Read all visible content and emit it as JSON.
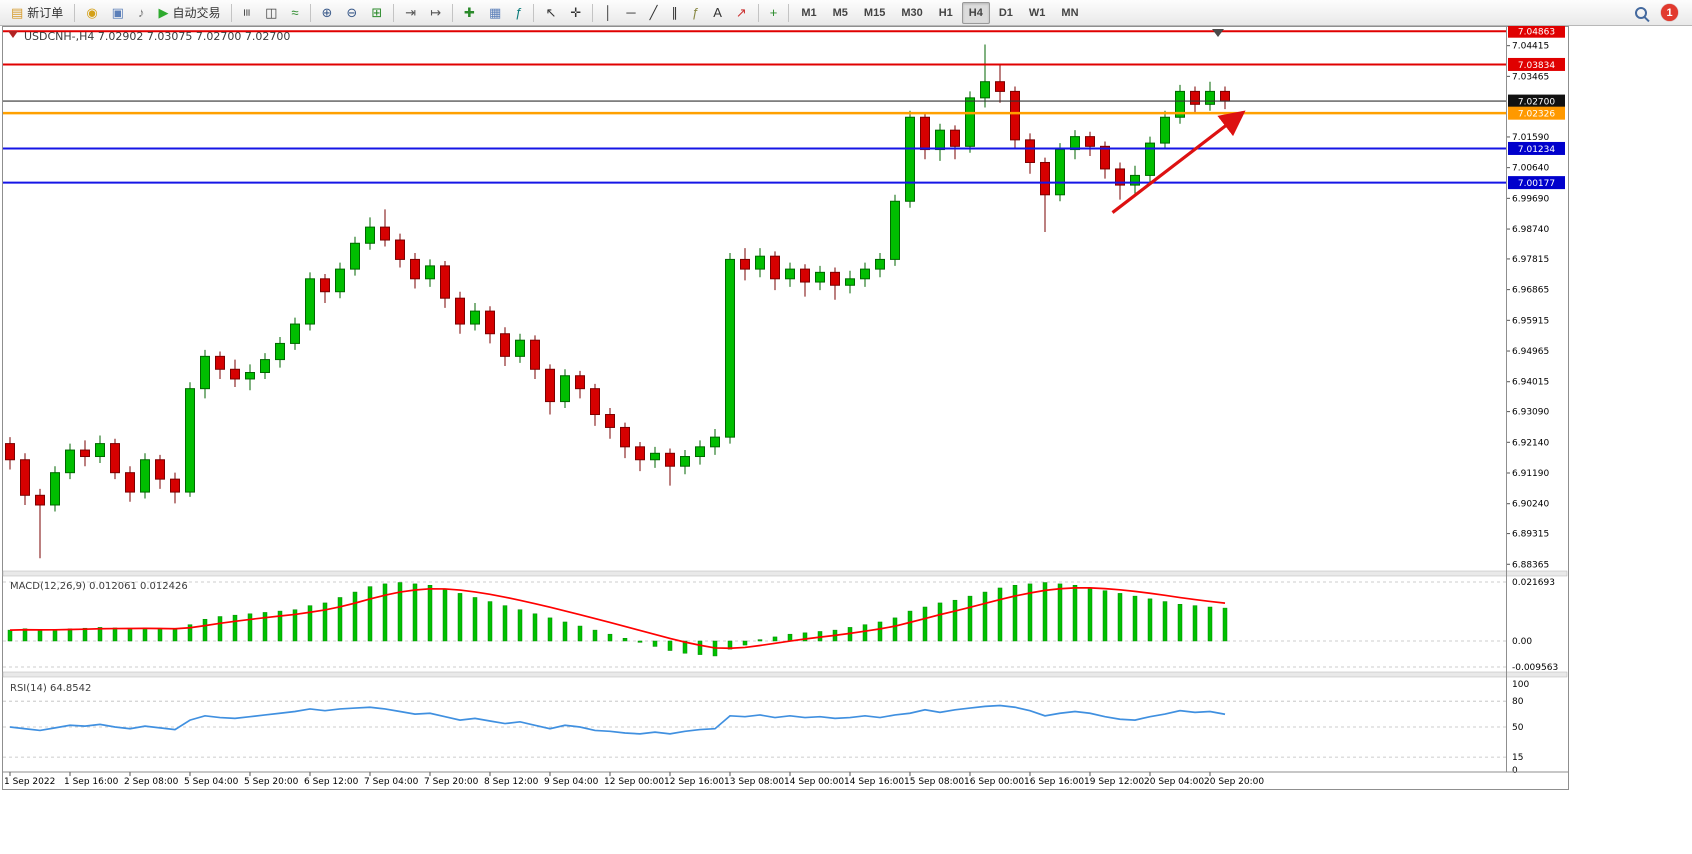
{
  "toolbar": {
    "notification_count": "1",
    "active_timeframe": "H4",
    "items": [
      {
        "name": "new-order-button",
        "glyph": "▤",
        "color": "#d59a2b",
        "label": "新订单"
      },
      {
        "sep": true
      },
      {
        "name": "market-watch-button",
        "glyph": "◉",
        "color": "#d4a017"
      },
      {
        "name": "data-window-button",
        "glyph": "▣",
        "color": "#5b7fb9"
      },
      {
        "name": "sounds-button",
        "glyph": "♪",
        "color": "#777777"
      },
      {
        "name": "autotrade-button",
        "glyph": "▶",
        "color": "#2eaa2e",
        "label": "自动交易"
      },
      {
        "sep": true
      },
      {
        "name": "bar-chart-button",
        "glyph": "≡",
        "color": "#444444",
        "rot": true
      },
      {
        "name": "candlestick-chart-button",
        "glyph": "◫",
        "color": "#444444"
      },
      {
        "name": "line-chart-button",
        "glyph": "≈",
        "color": "#2a8a2a"
      },
      {
        "sep": true
      },
      {
        "name": "zoom-in-button",
        "glyph": "⊕",
        "color": "#3a5a8a"
      },
      {
        "name": "zoom-out-button",
        "glyph": "⊖",
        "color": "#3a5a8a"
      },
      {
        "name": "tile-windows-button",
        "glyph": "⊞",
        "color": "#2a8a2a"
      },
      {
        "sep": true
      },
      {
        "name": "auto-scroll-button",
        "glyph": "⇥",
        "color": "#555555"
      },
      {
        "name": "chart-shift-button",
        "glyph": "↦",
        "color": "#555555"
      },
      {
        "sep": true
      },
      {
        "name": "new-chart-button",
        "glyph": "✚",
        "color": "#2a8a2a"
      },
      {
        "name": "profiles-button",
        "glyph": "▦",
        "color": "#5b7fb9"
      },
      {
        "name": "indicators-button",
        "glyph": "ƒ",
        "color": "#0a7a7a"
      },
      {
        "sep": true
      },
      {
        "name": "cursor-button",
        "glyph": "↖",
        "color": "#333333"
      },
      {
        "name": "crosshair-button",
        "glyph": "✛",
        "color": "#333333"
      },
      {
        "sep": true
      },
      {
        "name": "vertical-line-button",
        "glyph": "│",
        "color": "#333333"
      },
      {
        "name": "horizontal-line-button",
        "glyph": "─",
        "color": "#333333"
      },
      {
        "name": "trendline-button",
        "glyph": "╱",
        "color": "#333333"
      },
      {
        "name": "equidistant-channel-button",
        "glyph": "∥",
        "color": "#333333"
      },
      {
        "name": "fibonacci-button",
        "glyph": "ƒ",
        "color": "#888844"
      },
      {
        "name": "text-label-button",
        "glyph": "A",
        "color": "#333333"
      },
      {
        "name": "arrow-object-button",
        "glyph": "↗",
        "color": "#cc3333"
      },
      {
        "sep": true
      },
      {
        "name": "add-indicator-button",
        "glyph": "+",
        "color": "#2a8a2a"
      },
      {
        "sep": true
      },
      {
        "name": "timeframe-m1-button",
        "tf": "M1"
      },
      {
        "name": "timeframe-m5-button",
        "tf": "M5"
      },
      {
        "name": "timeframe-m15-button",
        "tf": "M15"
      },
      {
        "name": "timeframe-m30-button",
        "tf": "M30"
      },
      {
        "name": "timeframe-h1-button",
        "tf": "H1"
      },
      {
        "name": "timeframe-h4-button",
        "tf": "H4"
      },
      {
        "name": "timeframe-d1-button",
        "tf": "D1"
      },
      {
        "name": "timeframe-w1-button",
        "tf": "W1"
      },
      {
        "name": "timeframe-mn-button",
        "tf": "MN"
      }
    ]
  },
  "colors": {
    "bull": "#00BE00",
    "bull_border": "#006600",
    "bear": "#D60000",
    "bear_border": "#7A0000",
    "macd_bar": "#00C000",
    "macd_bar_border": "#008A00",
    "macd_signal": "#FF0000",
    "rsi_line": "#4090E0",
    "arrow": "#DD1111"
  },
  "chart_data": [
    {
      "type": "candlestick",
      "symbol": "USDCNH-",
      "timeframe": "H4",
      "title": "USDCNH-,H4 7.02902 7.03075 7.02700 7.02700",
      "ohlc_header": {
        "open": "7.02902",
        "high": "7.03075",
        "low": "7.02700",
        "close": "7.02700"
      },
      "ylim": [
        6.8825,
        7.049
      ],
      "y_ticks": [
        "7.04415",
        "7.03465",
        "7.01590",
        "7.00640",
        "6.99690",
        "6.98740",
        "6.97815",
        "6.96865",
        "6.95915",
        "6.94965",
        "6.94015",
        "6.93090",
        "6.92140",
        "6.91190",
        "6.90240",
        "6.89315",
        "6.88365"
      ],
      "price_lines": [
        {
          "label": "7.04863",
          "color": "#E00000",
          "badge": "#E00000",
          "width": 2
        },
        {
          "label": "7.03834",
          "color": "#E00000",
          "badge": "#E00000",
          "width": 2
        },
        {
          "label": "7.02700",
          "color": "#333333",
          "badge": "#111111",
          "width": 1.2,
          "current": true
        },
        {
          "label": "7.02326",
          "color": "#FFA000",
          "badge": "#FF9900",
          "width": 2.5
        },
        {
          "label": "7.01234",
          "color": "#1515E6",
          "badge": "#0000CC",
          "width": 2
        },
        {
          "label": "7.00177",
          "color": "#1515E6",
          "badge": "#0000CC",
          "width": 2
        }
      ],
      "x_label_step": 4,
      "x_labels": [
        "1 Sep 2022",
        "1 Sep 16:00",
        "2 Sep 08:00",
        "5 Sep 04:00",
        "5 Sep 20:00",
        "6 Sep 12:00",
        "7 Sep 04:00",
        "7 Sep 20:00",
        "8 Sep 12:00",
        "9 Sep 04:00",
        "12 Sep 00:00",
        "12 Sep 16:00",
        "13 Sep 08:00",
        "14 Sep 00:00",
        "14 Sep 16:00",
        "15 Sep 08:00",
        "16 Sep 00:00",
        "16 Sep 16:00",
        "19 Sep 12:00",
        "20 Sep 04:00",
        "20 Sep 20:00"
      ],
      "annotations": {
        "arrow": {
          "from_index": 73.5,
          "from_price": 6.9925,
          "to_index": 82.2,
          "to_price": 7.0235,
          "direction": "up-right"
        }
      },
      "ohlc": [
        [
          6.921,
          6.923,
          6.913,
          6.916
        ],
        [
          6.916,
          6.918,
          6.902,
          6.905
        ],
        [
          6.905,
          6.907,
          6.8855,
          6.902
        ],
        [
          6.902,
          6.914,
          6.9,
          6.912
        ],
        [
          6.912,
          6.921,
          6.91,
          6.919
        ],
        [
          6.919,
          6.922,
          6.914,
          6.917
        ],
        [
          6.917,
          6.9235,
          6.915,
          6.921
        ],
        [
          6.921,
          6.9225,
          6.91,
          6.912
        ],
        [
          6.912,
          6.914,
          6.903,
          6.906
        ],
        [
          6.906,
          6.918,
          6.904,
          6.916
        ],
        [
          6.916,
          6.9175,
          6.907,
          6.91
        ],
        [
          6.91,
          6.912,
          6.9025,
          6.906
        ],
        [
          6.906,
          6.94,
          6.9045,
          6.938
        ],
        [
          6.938,
          6.95,
          6.935,
          6.948
        ],
        [
          6.948,
          6.9495,
          6.941,
          6.944
        ],
        [
          6.944,
          6.947,
          6.9385,
          6.941
        ],
        [
          6.941,
          6.9455,
          6.9375,
          6.943
        ],
        [
          6.943,
          6.949,
          6.941,
          6.947
        ],
        [
          6.947,
          6.954,
          6.9445,
          6.952
        ],
        [
          6.952,
          6.96,
          6.95,
          6.958
        ],
        [
          6.958,
          6.974,
          6.956,
          6.972
        ],
        [
          6.972,
          6.9735,
          6.9645,
          6.968
        ],
        [
          6.968,
          6.977,
          6.966,
          6.975
        ],
        [
          6.975,
          6.985,
          6.973,
          6.983
        ],
        [
          6.983,
          6.991,
          6.981,
          6.988
        ],
        [
          6.988,
          6.9935,
          6.982,
          6.984
        ],
        [
          6.984,
          6.986,
          6.9755,
          6.978
        ],
        [
          6.978,
          6.98,
          6.969,
          6.972
        ],
        [
          6.972,
          6.978,
          6.9695,
          6.976
        ],
        [
          6.976,
          6.9775,
          6.963,
          6.966
        ],
        [
          6.966,
          6.968,
          6.955,
          6.958
        ],
        [
          6.958,
          6.9645,
          6.956,
          6.962
        ],
        [
          6.962,
          6.9635,
          6.952,
          6.955
        ],
        [
          6.955,
          6.957,
          6.945,
          6.948
        ],
        [
          6.948,
          6.955,
          6.946,
          6.953
        ],
        [
          6.953,
          6.9545,
          6.941,
          6.944
        ],
        [
          6.944,
          6.9455,
          6.93,
          6.934
        ],
        [
          6.934,
          6.944,
          6.932,
          6.942
        ],
        [
          6.942,
          6.9435,
          6.935,
          6.938
        ],
        [
          6.938,
          6.9395,
          6.9265,
          6.93
        ],
        [
          6.93,
          6.932,
          6.9225,
          6.926
        ],
        [
          6.926,
          6.9275,
          6.9165,
          6.92
        ],
        [
          6.92,
          6.9215,
          6.9125,
          6.916
        ],
        [
          6.916,
          6.92,
          6.9135,
          6.918
        ],
        [
          6.918,
          6.9195,
          6.908,
          6.914
        ],
        [
          6.914,
          6.919,
          6.9115,
          6.917
        ],
        [
          6.917,
          6.922,
          6.9145,
          6.92
        ],
        [
          6.92,
          6.9255,
          6.9175,
          6.923
        ],
        [
          6.923,
          6.98,
          6.921,
          6.978
        ],
        [
          6.978,
          6.9815,
          6.9715,
          6.975
        ],
        [
          6.975,
          6.9815,
          6.9725,
          6.979
        ],
        [
          6.979,
          6.9805,
          6.9685,
          6.972
        ],
        [
          6.972,
          6.977,
          6.9695,
          6.975
        ],
        [
          6.975,
          6.9765,
          6.9665,
          6.971
        ],
        [
          6.971,
          6.976,
          6.9685,
          6.974
        ],
        [
          6.974,
          6.9755,
          6.9655,
          6.97
        ],
        [
          6.97,
          6.9745,
          6.9675,
          6.972
        ],
        [
          6.972,
          6.977,
          6.9695,
          6.975
        ],
        [
          6.975,
          6.98,
          6.9725,
          6.978
        ],
        [
          6.978,
          6.998,
          6.976,
          6.996
        ],
        [
          6.996,
          7.024,
          6.994,
          7.022
        ],
        [
          7.022,
          7.0235,
          7.009,
          7.012
        ],
        [
          7.012,
          7.02,
          7.0085,
          7.018
        ],
        [
          7.018,
          7.0195,
          7.009,
          7.013
        ],
        [
          7.013,
          7.03,
          7.011,
          7.028
        ],
        [
          7.028,
          7.0445,
          7.025,
          7.033
        ],
        [
          7.033,
          7.038,
          7.0265,
          7.03
        ],
        [
          7.03,
          7.0315,
          7.012,
          7.015
        ],
        [
          7.015,
          7.017,
          7.0045,
          7.008
        ],
        [
          7.008,
          7.0095,
          6.9865,
          6.998
        ],
        [
          6.998,
          7.014,
          6.996,
          7.012
        ],
        [
          7.012,
          7.018,
          7.009,
          7.016
        ],
        [
          7.016,
          7.0175,
          7.01,
          7.013
        ],
        [
          7.013,
          7.0145,
          7.003,
          7.006
        ],
        [
          7.006,
          7.008,
          6.9965,
          7.001
        ],
        [
          7.001,
          7.007,
          6.998,
          7.004
        ],
        [
          7.004,
          7.016,
          7.002,
          7.014
        ],
        [
          7.014,
          7.024,
          7.012,
          7.022
        ],
        [
          7.022,
          7.032,
          7.02,
          7.03
        ],
        [
          7.03,
          7.0315,
          7.023,
          7.026
        ],
        [
          7.026,
          7.033,
          7.024,
          7.03
        ],
        [
          7.03,
          7.0315,
          7.0245,
          7.027
        ]
      ]
    },
    {
      "type": "bar",
      "name": "MACD",
      "label": "MACD(12,26,9) 0.012061 0.012426",
      "readout": [
        0.012061,
        0.012426
      ],
      "axis_labels": [
        "0.021693",
        "0.00",
        "-0.009563"
      ],
      "values": [
        0.004,
        0.0045,
        0.004,
        0.0042,
        0.0045,
        0.0047,
        0.005,
        0.0048,
        0.0046,
        0.0048,
        0.0045,
        0.0042,
        0.006,
        0.008,
        0.009,
        0.0095,
        0.01,
        0.0105,
        0.011,
        0.0115,
        0.013,
        0.014,
        0.016,
        0.018,
        0.02,
        0.021,
        0.0215,
        0.021,
        0.0205,
        0.019,
        0.0175,
        0.016,
        0.0145,
        0.013,
        0.0115,
        0.01,
        0.0085,
        0.007,
        0.0055,
        0.004,
        0.0025,
        0.001,
        -0.0005,
        -0.002,
        -0.0035,
        -0.0045,
        -0.005,
        -0.0055,
        -0.003,
        -0.0015,
        0.0005,
        0.0015,
        0.0025,
        0.003,
        0.0035,
        0.004,
        0.005,
        0.006,
        0.007,
        0.0085,
        0.011,
        0.0125,
        0.014,
        0.015,
        0.0165,
        0.018,
        0.0195,
        0.0205,
        0.021,
        0.0215,
        0.021,
        0.0205,
        0.0195,
        0.0185,
        0.0175,
        0.0165,
        0.0155,
        0.0145,
        0.0135,
        0.013,
        0.0125,
        0.0121
      ]
    },
    {
      "type": "line",
      "name": "RSI",
      "label": "RSI(14) 64.8542",
      "readout": 64.8542,
      "axis_labels": [
        "100",
        "80",
        "50",
        "15",
        "0"
      ],
      "level_lines": [
        80,
        50,
        15
      ],
      "ylim": [
        0,
        100
      ],
      "values": [
        50,
        48,
        46,
        49,
        52,
        51,
        53,
        50,
        48,
        51,
        49,
        47,
        58,
        63,
        61,
        60,
        62,
        64,
        66,
        68,
        71,
        69,
        71,
        72,
        73,
        71,
        68,
        65,
        66,
        62,
        58,
        60,
        57,
        54,
        56,
        52,
        48,
        52,
        50,
        46,
        45,
        43,
        42,
        44,
        42,
        45,
        47,
        48,
        63,
        62,
        64,
        61,
        63,
        61,
        62,
        60,
        61,
        63,
        61,
        64,
        66,
        70,
        67,
        70,
        72,
        74,
        75,
        73,
        69,
        63,
        66,
        68,
        66,
        62,
        59,
        58,
        62,
        65,
        69,
        67,
        68,
        64.85
      ]
    }
  ]
}
